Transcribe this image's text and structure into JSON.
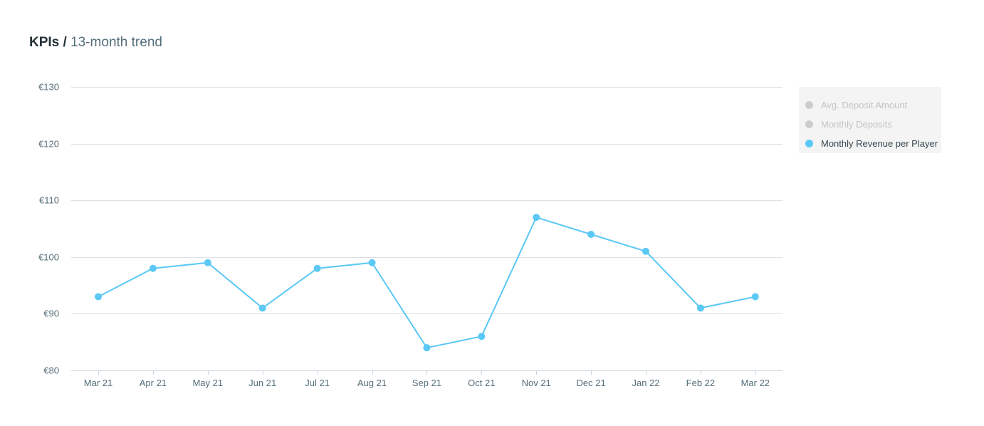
{
  "header": {
    "title_bold": "KPIs",
    "separator": "/",
    "subtitle": "13-month trend"
  },
  "legend": {
    "items": [
      {
        "label": "Avg. Deposit Amount",
        "active": false,
        "color": "#cccccc"
      },
      {
        "label": "Monthly Deposits",
        "active": false,
        "color": "#cccccc"
      },
      {
        "label": "Monthly Revenue per Player",
        "active": true,
        "color": "#5bc8f5"
      }
    ]
  },
  "chart_data": {
    "type": "line",
    "title": "",
    "xlabel": "",
    "ylabel": "",
    "categories": [
      "Mar 21",
      "Apr 21",
      "May 21",
      "Jun 21",
      "Jul 21",
      "Aug 21",
      "Sep 21",
      "Oct 21",
      "Nov 21",
      "Dec 21",
      "Jan 22",
      "Feb 22",
      "Mar 22"
    ],
    "ylim": [
      80,
      130
    ],
    "yticks": [
      80,
      90,
      100,
      110,
      120,
      130
    ],
    "ytick_labels": [
      "€80",
      "€90",
      "€100",
      "€110",
      "€120",
      "€130"
    ],
    "grid": true,
    "legend_position": "right",
    "series": [
      {
        "name": "Monthly Revenue per Player",
        "color": "#5bc8f5",
        "values": [
          93,
          98,
          99,
          91,
          98,
          99,
          84,
          86,
          107,
          104,
          101,
          91,
          93
        ]
      }
    ],
    "colors": {
      "grid": "#dde1e4",
      "axis": "#c8d3dc",
      "tick_text": "#546e7a"
    }
  }
}
